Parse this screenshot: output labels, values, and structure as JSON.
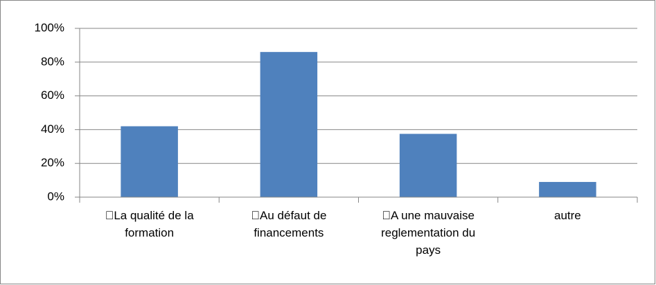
{
  "chart_data": {
    "type": "bar",
    "categories": [
      "La qualité de la formation",
      "Au défaut de financements",
      "A une mauvaise reglementation du pays",
      "autre"
    ],
    "values": [
      42,
      86,
      37.5,
      9
    ],
    "color": "#4f81bd",
    "ylim": [
      0,
      100
    ],
    "yticks": [
      {
        "value": 0,
        "label": "0%"
      },
      {
        "value": 20,
        "label": "20%"
      },
      {
        "value": 40,
        "label": "40%"
      },
      {
        "value": 60,
        "label": "60%"
      },
      {
        "value": 80,
        "label": "80%"
      },
      {
        "value": 100,
        "label": "100%"
      }
    ],
    "grid": true
  }
}
